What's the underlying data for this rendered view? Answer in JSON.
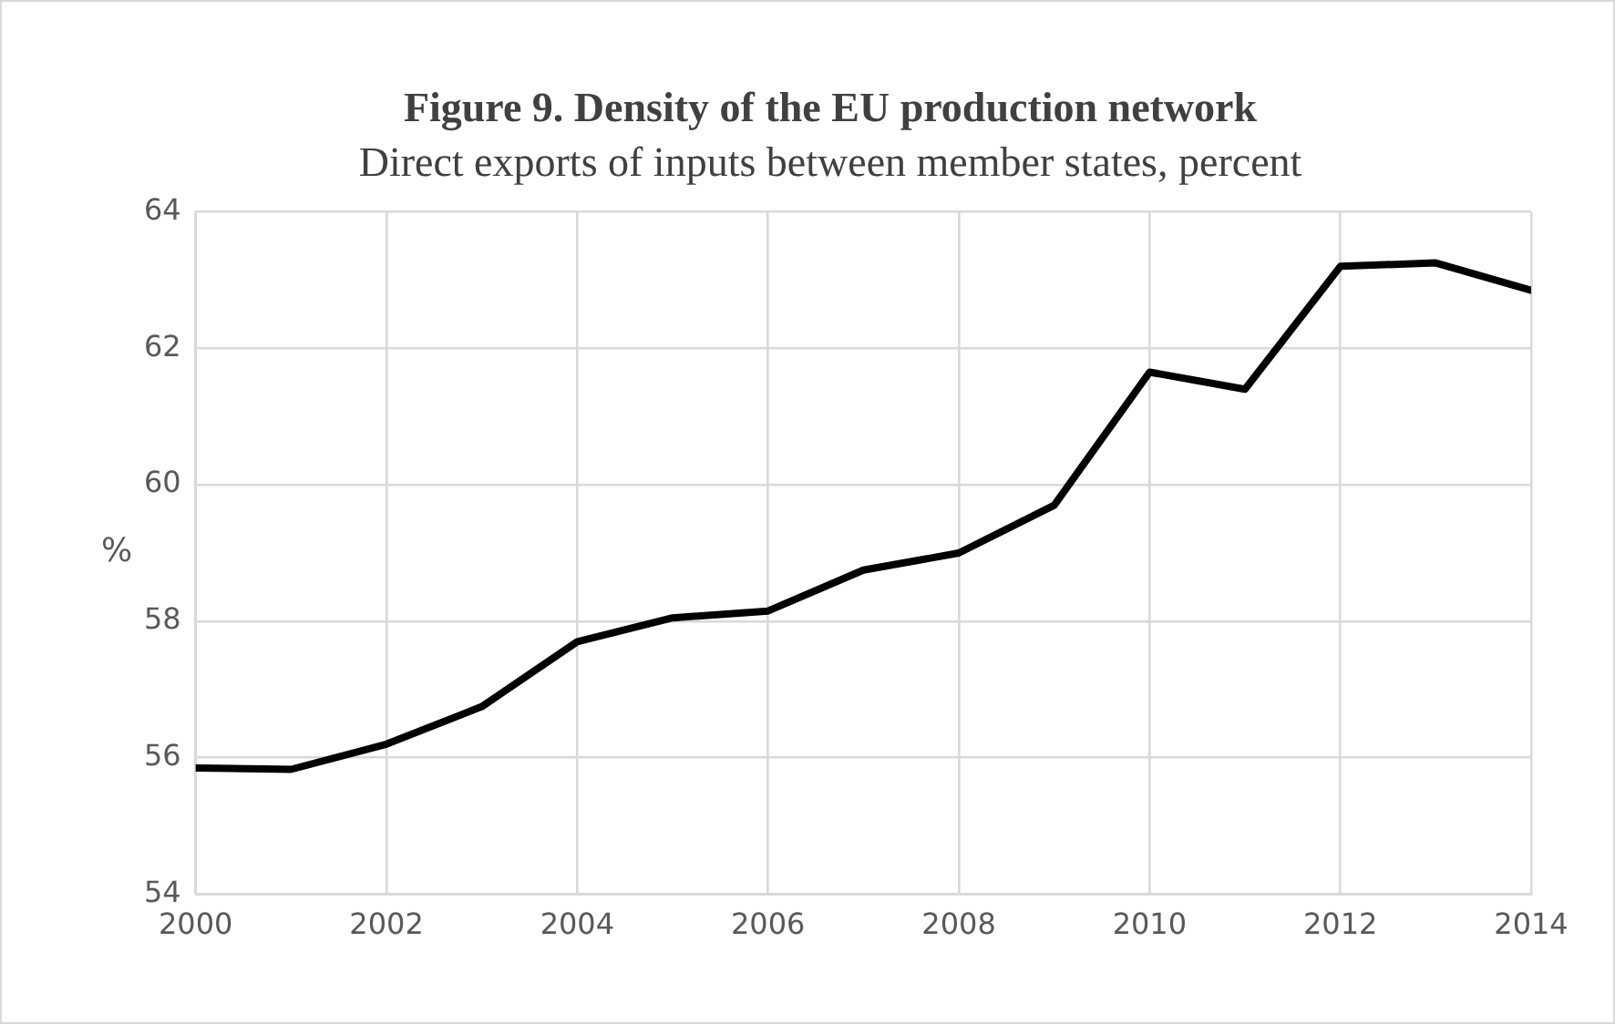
{
  "chart_data": {
    "type": "line",
    "title": "Figure 9. Density of the EU production network",
    "subtitle": "Direct exports of inputs between member states, percent",
    "ylabel": "%",
    "x": [
      2000,
      2001,
      2002,
      2003,
      2004,
      2005,
      2006,
      2007,
      2008,
      2009,
      2010,
      2011,
      2012,
      2013,
      2014
    ],
    "series": [
      {
        "color": "#000000",
        "values": [
          55.85,
          55.83,
          56.2,
          56.75,
          57.7,
          58.05,
          58.15,
          58.75,
          59.0,
          59.7,
          61.65,
          61.4,
          63.2,
          63.25,
          62.85
        ]
      }
    ],
    "xlim": [
      2000,
      2014
    ],
    "xticks": [
      2000,
      2002,
      2004,
      2006,
      2008,
      2010,
      2012,
      2014
    ],
    "ylim": [
      54,
      64
    ],
    "yticks": [
      54,
      56,
      58,
      60,
      62,
      64
    ],
    "grid": true,
    "legend": false,
    "marker": "none",
    "line_style": "solid"
  }
}
